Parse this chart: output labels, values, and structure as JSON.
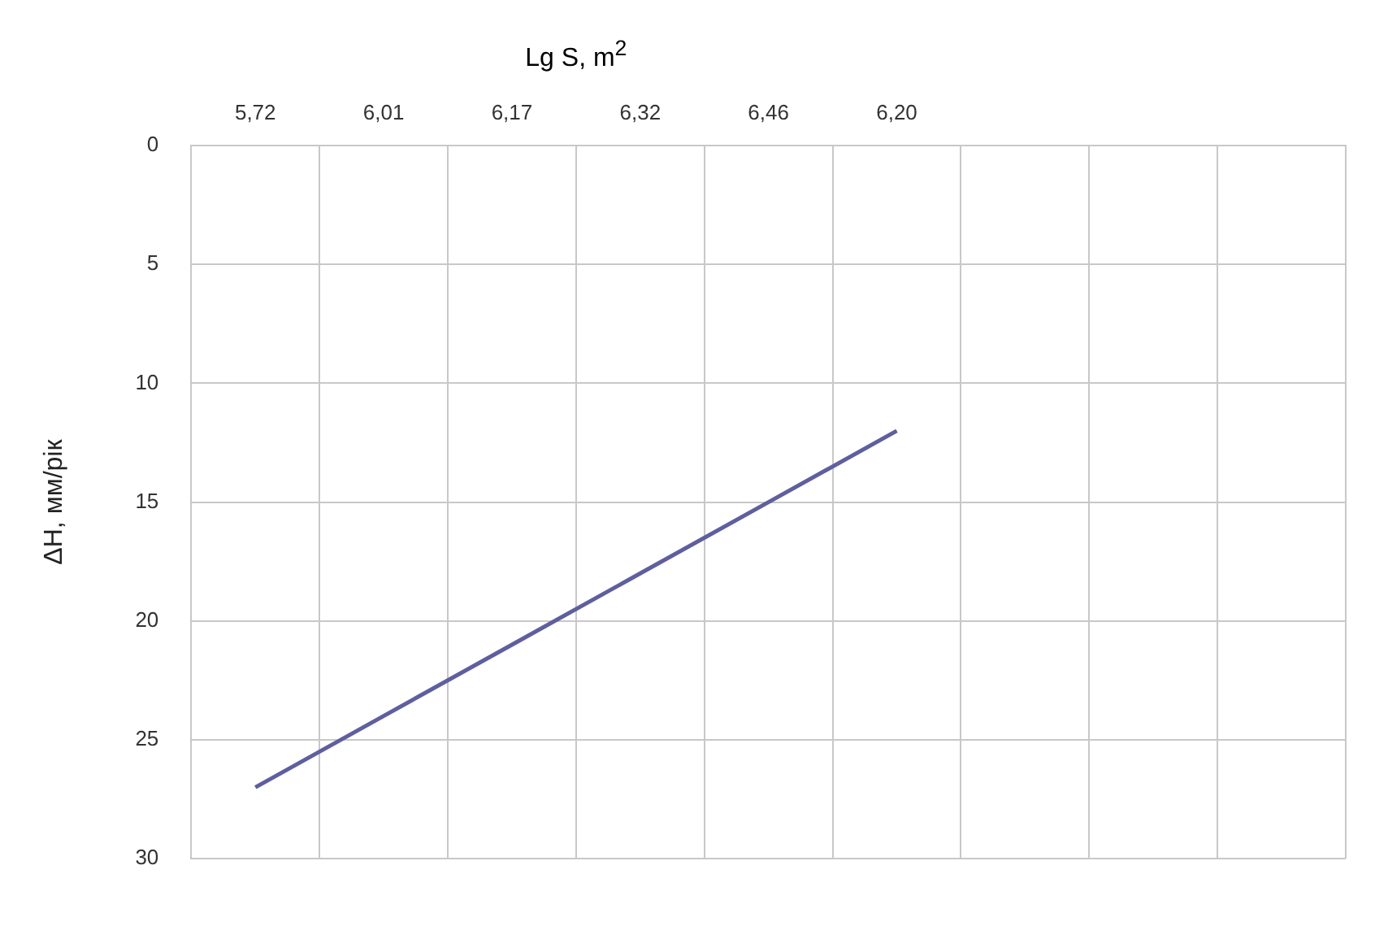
{
  "chart_data": {
    "type": "line",
    "xlabel": "Lg S,  m$^{2}$",
    "ylabel": "ΔH, мм/рік",
    "categories": [
      "5,72",
      "6,01",
      "6,17",
      "6,32",
      "6,46",
      "6,20",
      null,
      null,
      null
    ],
    "series": [
      {
        "color": "#5f5f9f",
        "values": [
          27,
          24,
          21,
          18,
          15,
          12,
          null,
          null,
          null
        ]
      }
    ],
    "ylim": [
      30,
      0
    ],
    "yticks": [
      0,
      5,
      10,
      15,
      20,
      25,
      30
    ],
    "grid": true,
    "legend": false,
    "marker": "none"
  }
}
